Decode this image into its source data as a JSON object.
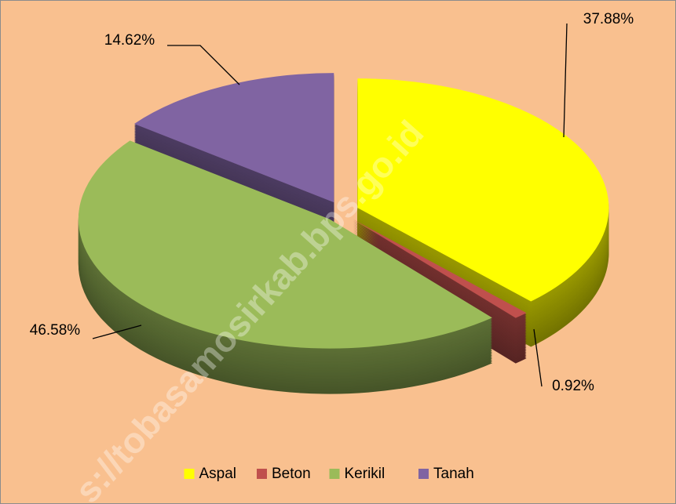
{
  "chart_data": {
    "type": "pie",
    "categories": [
      "Aspal",
      "Beton",
      "Kerikil",
      "Tanah"
    ],
    "values": [
      37.88,
      0.92,
      46.58,
      14.62
    ],
    "value_labels": [
      "37.88%",
      "0.92%",
      "46.58%",
      "14.62%"
    ],
    "colors": [
      "#ffff00",
      "#c0504d",
      "#9bbb59",
      "#8064a2"
    ],
    "legend": "bottom",
    "watermark": "s://tobasamosirkab.bps.go.id"
  }
}
